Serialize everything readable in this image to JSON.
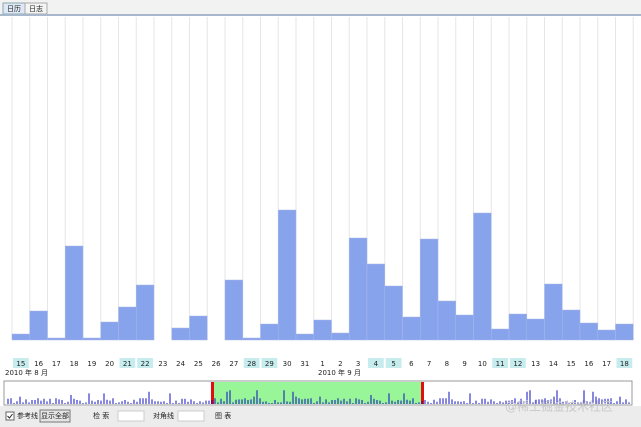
{
  "tabs": [
    "日历",
    "日志"
  ],
  "chart_data": {
    "type": "bar",
    "categories": [
      "15",
      "16",
      "17",
      "18",
      "19",
      "20",
      "21",
      "22",
      "23",
      "24",
      "25",
      "26",
      "27",
      "28",
      "29",
      "30",
      "31",
      "1",
      "2",
      "3",
      "4",
      "5",
      "6",
      "7",
      "8",
      "9",
      "10",
      "11",
      "12",
      "13",
      "14",
      "15",
      "16",
      "17",
      "18"
    ],
    "values": [
      6,
      29,
      2,
      94,
      2,
      18,
      33,
      55,
      null,
      12,
      24,
      null,
      60,
      2,
      16,
      130,
      6,
      20,
      7,
      102,
      76,
      54,
      23,
      101,
      39,
      25,
      127,
      11,
      26,
      21,
      56,
      30,
      17,
      10,
      16
    ],
    "label_highlight": [
      true,
      false,
      false,
      false,
      false,
      false,
      true,
      true,
      false,
      false,
      false,
      false,
      false,
      true,
      true,
      false,
      false,
      false,
      false,
      false,
      true,
      true,
      false,
      false,
      false,
      false,
      false,
      true,
      true,
      false,
      false,
      false,
      false,
      false,
      true
    ],
    "color": "#87a3ec",
    "months": [
      "2010 年 8 月",
      "2010 年 9 月"
    ]
  },
  "toolbar": {
    "checkbox": "参考线",
    "button": "显示全部",
    "search": "检 索",
    "diagonal": "对角线",
    "chart": "图 表"
  },
  "watermark": "@稀土掘金技术社区"
}
